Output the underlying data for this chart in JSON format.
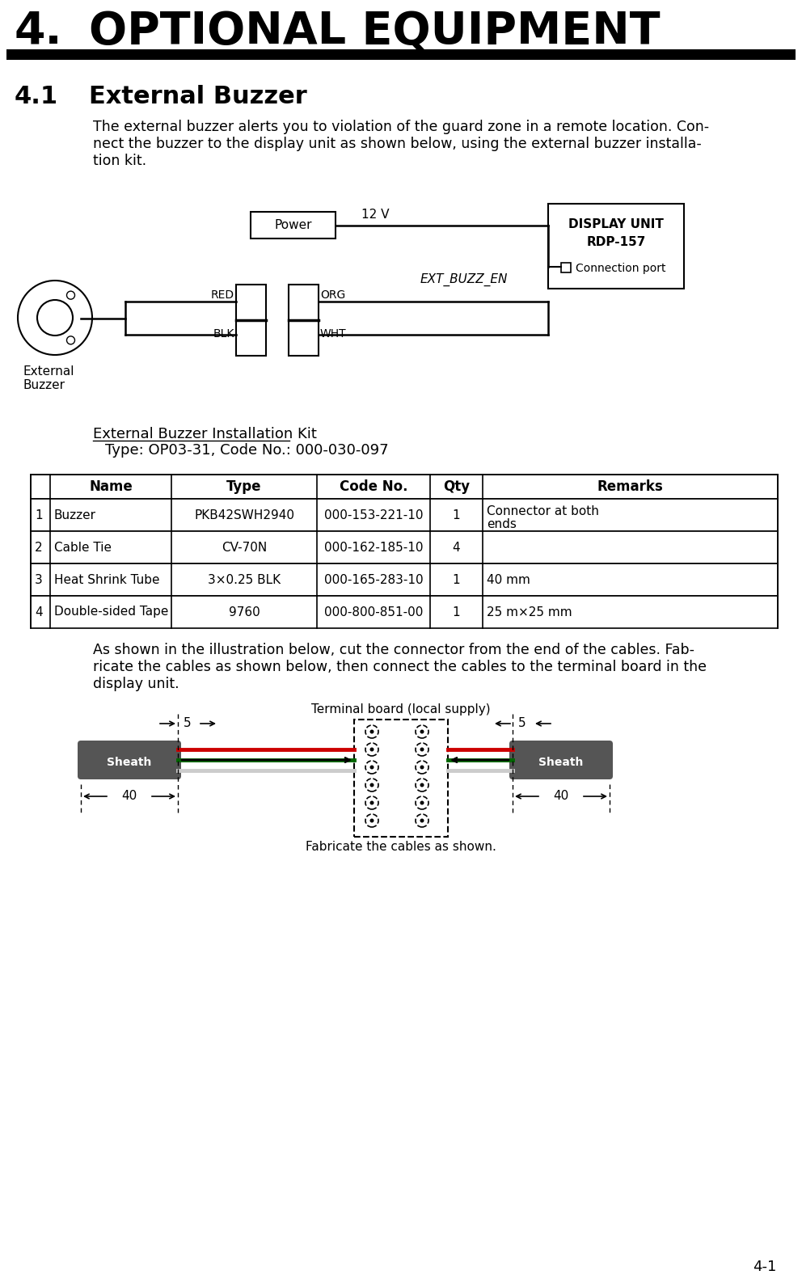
{
  "title_number": "4.",
  "title_text": "OPTIONAL EQUIPMENT",
  "section_number": "4.1",
  "section_title": "External Buzzer",
  "body_text1_lines": [
    "The external buzzer alerts you to violation of the guard zone in a remote location. Con-",
    "nect the buzzer to the display unit as shown below, using the external buzzer installa-",
    "tion kit."
  ],
  "kit_label": "External Buzzer Installation Kit",
  "kit_type": "Type: OP03-31, Code No.: 000-030-097",
  "table_headers": [
    "",
    "Name",
    "Type",
    "Code No.",
    "Qty",
    "Remarks"
  ],
  "table_rows": [
    [
      "1",
      "Buzzer",
      "PKB42SWH2940",
      "000-153-221-10",
      "1",
      "Connector at both\nends"
    ],
    [
      "2",
      "Cable Tie",
      "CV-70N",
      "000-162-185-10",
      "4",
      ""
    ],
    [
      "3",
      "Heat Shrink Tube",
      "3×0.25 BLK",
      "000-165-283-10",
      "1",
      "40 mm"
    ],
    [
      "4",
      "Double-sided Tape",
      "9760",
      "000-800-851-00",
      "1",
      "25 m×25 mm"
    ]
  ],
  "body_text2_lines": [
    "As shown in the illustration below, cut the connector from the end of the cables. Fab-",
    "ricate the cables as shown below, then connect the cables to the terminal board in the",
    "display unit."
  ],
  "fabricate_label": "Fabricate the cables as shown.",
  "terminal_label": "Terminal board (local supply)",
  "page_num": "4-1",
  "bg_color": "#ffffff",
  "text_color": "#000000",
  "power_box": "Power",
  "voltage_label": "12 V",
  "display_box_line1": "DISPLAY UNIT",
  "display_box_line2": "RDP-157",
  "connection_port": "Connection port",
  "ext_buzz_label": "EXT_BUZZ_EN",
  "red_label": "RED",
  "blk_label": "BLK",
  "org_label": "ORG",
  "wht_label": "WHT",
  "buzzer_label_line1": "External",
  "buzzer_label_line2": "Buzzer",
  "cable_red": "#cc0000",
  "cable_green": "#006600",
  "cable_white": "#cccccc",
  "sheath_color": "#555555"
}
